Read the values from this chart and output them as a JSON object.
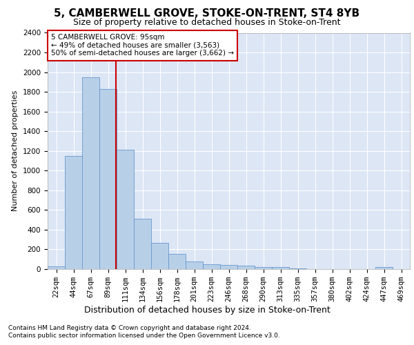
{
  "title1": "5, CAMBERWELL GROVE, STOKE-ON-TRENT, ST4 8YB",
  "title2": "Size of property relative to detached houses in Stoke-on-Trent",
  "xlabel": "Distribution of detached houses by size in Stoke-on-Trent",
  "ylabel": "Number of detached properties",
  "annotation_line1": "5 CAMBERWELL GROVE: 95sqm",
  "annotation_line2": "← 49% of detached houses are smaller (3,563)",
  "annotation_line3": "50% of semi-detached houses are larger (3,662) →",
  "footnote1": "Contains HM Land Registry data © Crown copyright and database right 2024.",
  "footnote2": "Contains public sector information licensed under the Open Government Licence v3.0.",
  "categories": [
    "22sqm",
    "44sqm",
    "67sqm",
    "89sqm",
    "111sqm",
    "134sqm",
    "156sqm",
    "178sqm",
    "201sqm",
    "223sqm",
    "246sqm",
    "268sqm",
    "290sqm",
    "313sqm",
    "335sqm",
    "357sqm",
    "380sqm",
    "402sqm",
    "424sqm",
    "447sqm",
    "469sqm"
  ],
  "values": [
    30,
    1150,
    1950,
    1830,
    1210,
    510,
    265,
    155,
    80,
    50,
    45,
    35,
    20,
    20,
    10,
    0,
    0,
    0,
    0,
    20,
    0
  ],
  "bar_color": "#b8cfe8",
  "bar_edge_color": "#6699cc",
  "property_line_x": 3.45,
  "ylim": [
    0,
    2400
  ],
  "yticks": [
    0,
    200,
    400,
    600,
    800,
    1000,
    1200,
    1400,
    1600,
    1800,
    2000,
    2200,
    2400
  ],
  "plot_background": "#dce6f5",
  "annotation_box_color": "#cc0000",
  "grid_color": "#ffffff",
  "title1_fontsize": 11,
  "title2_fontsize": 9,
  "ylabel_fontsize": 8,
  "xlabel_fontsize": 9,
  "tick_fontsize": 7.5,
  "annotation_fontsize": 7.5,
  "footnote_fontsize": 6.5
}
